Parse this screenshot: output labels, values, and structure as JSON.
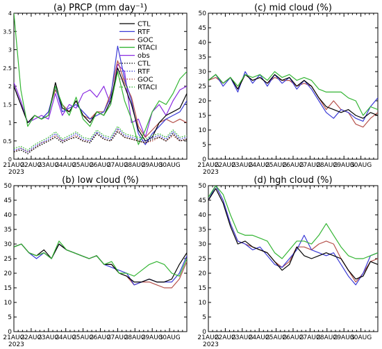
{
  "x_tick_labels": [
    "21AUG",
    "22AUG",
    "23AUG",
    "24AUG",
    "25AUG",
    "26AUG",
    "27AUG",
    "28AUG",
    "29AUG",
    "30AUG"
  ],
  "x_year_label": "2023",
  "colors": {
    "CTL": "#000000",
    "RTF": "#3a3ad6",
    "GOC": "#b5504a",
    "RTACI": "#33b533",
    "obs": "#8a2be2"
  },
  "chart_data": [
    {
      "type": "line",
      "title": "(a) PRCP (mm day⁻¹)",
      "x_range_days": [
        0,
        10
      ],
      "ylim": [
        0,
        4
      ],
      "y_ticks": [
        0,
        0.5,
        1,
        1.5,
        2,
        2.5,
        3,
        3.5,
        4
      ],
      "y_tick_labels": [
        "0",
        "0.5",
        "1",
        "1.5",
        "2",
        "2.5",
        "3",
        "3.5",
        "4"
      ],
      "legend": [
        {
          "label": "CTL",
          "color": "#000000",
          "style": "solid"
        },
        {
          "label": "RTF",
          "color": "#3a3ad6",
          "style": "solid"
        },
        {
          "label": "GOC",
          "color": "#b5504a",
          "style": "solid"
        },
        {
          "label": "RTACI",
          "color": "#33b533",
          "style": "solid"
        },
        {
          "label": "obs",
          "color": "#8a2be2",
          "style": "solid"
        },
        {
          "label": "CTL",
          "color": "#000000",
          "style": "dotted"
        },
        {
          "label": "RTF",
          "color": "#3a3ad6",
          "style": "dotted"
        },
        {
          "label": "GOC",
          "color": "#b5504a",
          "style": "dotted"
        },
        {
          "label": "RTACI",
          "color": "#33b533",
          "style": "dotted"
        }
      ],
      "series": [
        {
          "name": "CTL",
          "style": "solid",
          "values": [
            2.0,
            1.5,
            1.0,
            1.2,
            1.1,
            1.2,
            2.1,
            1.4,
            1.3,
            1.6,
            1.2,
            1.0,
            1.3,
            1.2,
            1.6,
            2.5,
            2.0,
            1.5,
            0.8,
            0.5,
            0.6,
            1.0,
            1.2,
            1.3,
            1.4,
            1.8
          ]
        },
        {
          "name": "RTF",
          "style": "solid",
          "values": [
            2.0,
            1.5,
            1.0,
            1.2,
            1.1,
            1.3,
            2.0,
            1.3,
            1.4,
            1.5,
            1.3,
            1.1,
            1.2,
            1.3,
            1.7,
            3.1,
            2.2,
            1.6,
            0.7,
            0.4,
            0.7,
            0.9,
            1.1,
            1.2,
            1.3,
            1.6
          ]
        },
        {
          "name": "GOC",
          "style": "solid",
          "values": [
            2.0,
            1.5,
            1.0,
            1.2,
            1.1,
            1.3,
            1.9,
            1.5,
            1.3,
            1.6,
            1.2,
            1.1,
            1.3,
            1.3,
            1.8,
            2.7,
            2.1,
            1.7,
            0.9,
            0.6,
            0.8,
            1.0,
            1.1,
            1.0,
            1.1,
            1.0
          ]
        },
        {
          "name": "RTACI",
          "style": "solid",
          "values": [
            4.0,
            1.9,
            0.9,
            1.2,
            1.1,
            1.2,
            2.0,
            1.5,
            1.2,
            1.7,
            1.1,
            0.9,
            1.3,
            1.2,
            1.5,
            2.4,
            1.6,
            1.1,
            0.4,
            0.8,
            1.3,
            1.6,
            1.5,
            1.8,
            2.2,
            2.4
          ]
        },
        {
          "name": "obs",
          "style": "solid",
          "values": [
            2.1,
            1.6,
            1.0,
            1.1,
            1.2,
            1.1,
            1.8,
            1.2,
            1.5,
            1.4,
            1.8,
            1.9,
            1.7,
            2.0,
            1.5,
            2.6,
            2.4,
            1.0,
            1.1,
            0.6,
            1.3,
            1.5,
            1.2,
            1.6,
            1.9,
            2.0
          ]
        },
        {
          "name": "CTL",
          "style": "dotted",
          "values": [
            0.2,
            0.25,
            0.15,
            0.3,
            0.4,
            0.5,
            0.6,
            0.45,
            0.55,
            0.6,
            0.5,
            0.45,
            0.7,
            0.55,
            0.5,
            0.75,
            0.6,
            0.55,
            0.5,
            0.45,
            0.55,
            0.6,
            0.5,
            0.7,
            0.5,
            0.55
          ]
        },
        {
          "name": "RTF",
          "style": "dotted",
          "values": [
            0.25,
            0.3,
            0.2,
            0.35,
            0.45,
            0.55,
            0.7,
            0.5,
            0.6,
            0.7,
            0.55,
            0.5,
            0.75,
            0.6,
            0.55,
            0.85,
            0.65,
            0.6,
            0.55,
            0.5,
            0.6,
            0.65,
            0.55,
            0.75,
            0.55,
            0.6
          ]
        },
        {
          "name": "GOC",
          "style": "dotted",
          "values": [
            0.2,
            0.3,
            0.2,
            0.3,
            0.45,
            0.5,
            0.65,
            0.5,
            0.55,
            0.65,
            0.5,
            0.5,
            0.7,
            0.55,
            0.5,
            0.8,
            0.6,
            0.55,
            0.5,
            0.45,
            0.5,
            0.6,
            0.5,
            0.65,
            0.5,
            0.55
          ]
        },
        {
          "name": "RTACI",
          "style": "dotted",
          "values": [
            0.3,
            0.35,
            0.25,
            0.4,
            0.5,
            0.6,
            0.75,
            0.55,
            0.65,
            0.75,
            0.6,
            0.55,
            0.8,
            0.65,
            0.6,
            0.9,
            0.7,
            0.65,
            0.6,
            0.55,
            0.65,
            0.7,
            0.6,
            0.8,
            0.6,
            0.65
          ]
        }
      ]
    },
    {
      "type": "line",
      "title": "(c) mid cloud (%)",
      "x_range_days": [
        0,
        10
      ],
      "ylim": [
        0,
        50
      ],
      "y_ticks": [
        0,
        5,
        10,
        15,
        20,
        25,
        30,
        35,
        40,
        45,
        50
      ],
      "y_tick_labels": [
        "0",
        "5",
        "10",
        "15",
        "20",
        "25",
        "30",
        "35",
        "40",
        "45",
        "50"
      ],
      "series": [
        {
          "name": "CTL",
          "style": "solid",
          "values": [
            27,
            29,
            26,
            28,
            24,
            29,
            27,
            28,
            26,
            29,
            27,
            28,
            25,
            27,
            25,
            21,
            18,
            17,
            16,
            17,
            15,
            14,
            16,
            15
          ]
        },
        {
          "name": "RTF",
          "style": "solid",
          "values": [
            27,
            29,
            25,
            28,
            23,
            30,
            26,
            29,
            25,
            29,
            26,
            28,
            24,
            27,
            24,
            20,
            16,
            14,
            17,
            16,
            14,
            13,
            18,
            21
          ]
        },
        {
          "name": "GOC",
          "style": "solid",
          "values": [
            27,
            28,
            26,
            28,
            24,
            29,
            27,
            28,
            26,
            28,
            27,
            27,
            25,
            26,
            25,
            21,
            17,
            20,
            17,
            16,
            12,
            11,
            14,
            16
          ]
        },
        {
          "name": "RTACI",
          "style": "solid",
          "values": [
            27,
            29,
            26,
            28,
            25,
            29,
            28,
            29,
            27,
            30,
            28,
            29,
            27,
            28,
            27,
            24,
            23,
            23,
            23,
            21,
            20,
            15,
            18,
            17
          ]
        }
      ]
    },
    {
      "type": "line",
      "title": "(b) low cloud (%)",
      "x_range_days": [
        0,
        10
      ],
      "ylim": [
        0,
        50
      ],
      "y_ticks": [
        0,
        5,
        10,
        15,
        20,
        25,
        30,
        35,
        40,
        45,
        50
      ],
      "y_tick_labels": [
        "0",
        "5",
        "10",
        "15",
        "20",
        "25",
        "30",
        "35",
        "40",
        "45",
        "50"
      ],
      "series": [
        {
          "name": "CTL",
          "style": "solid",
          "values": [
            29,
            30,
            27,
            26,
            28,
            25,
            30,
            28,
            27,
            26,
            25,
            26,
            23,
            23,
            20,
            19,
            17,
            17,
            18,
            17,
            17,
            18,
            23,
            27
          ]
        },
        {
          "name": "RTF",
          "style": "solid",
          "values": [
            29,
            30,
            27,
            25,
            27,
            25,
            30,
            28,
            27,
            26,
            25,
            26,
            23,
            22,
            21,
            20,
            16,
            17,
            18,
            17,
            17,
            17,
            20,
            26
          ]
        },
        {
          "name": "GOC",
          "style": "solid",
          "values": [
            29,
            30,
            27,
            26,
            27,
            25,
            30,
            28,
            27,
            26,
            25,
            26,
            23,
            23,
            20,
            19,
            16,
            17,
            17,
            16,
            15,
            15,
            18,
            24
          ]
        },
        {
          "name": "RTACI",
          "style": "solid",
          "values": [
            29,
            30,
            27,
            26,
            27,
            25,
            31,
            28,
            27,
            26,
            25,
            26,
            23,
            24,
            20,
            20,
            19,
            21,
            23,
            24,
            23,
            20,
            19,
            25
          ]
        }
      ]
    },
    {
      "type": "line",
      "title": "(d) hgh cloud (%)",
      "x_range_days": [
        0,
        10
      ],
      "ylim": [
        0,
        50
      ],
      "y_ticks": [
        0,
        5,
        10,
        15,
        20,
        25,
        30,
        35,
        40,
        45,
        50
      ],
      "y_tick_labels": [
        "0",
        "5",
        "10",
        "15",
        "20",
        "25",
        "30",
        "35",
        "40",
        "45",
        "50"
      ],
      "series": [
        {
          "name": "CTL",
          "style": "solid",
          "values": [
            45,
            49,
            44,
            36,
            30,
            31,
            29,
            28,
            27,
            24,
            21,
            23,
            29,
            26,
            25,
            26,
            27,
            26,
            25,
            21,
            18,
            19,
            24,
            23
          ]
        },
        {
          "name": "RTF",
          "style": "solid",
          "values": [
            45,
            50,
            45,
            37,
            31,
            30,
            28,
            29,
            26,
            23,
            22,
            25,
            28,
            33,
            28,
            27,
            26,
            27,
            23,
            19,
            16,
            20,
            26,
            27
          ]
        },
        {
          "name": "GOC",
          "style": "solid",
          "values": [
            45,
            50,
            45,
            37,
            31,
            30,
            29,
            28,
            27,
            24,
            22,
            24,
            29,
            29,
            28,
            30,
            31,
            30,
            25,
            21,
            17,
            20,
            24,
            25
          ]
        },
        {
          "name": "RTACI",
          "style": "solid",
          "values": [
            46,
            50,
            47,
            40,
            34,
            33,
            33,
            32,
            31,
            27,
            25,
            28,
            31,
            31,
            30,
            33,
            37,
            33,
            29,
            26,
            25,
            25,
            26,
            27
          ]
        }
      ]
    }
  ]
}
